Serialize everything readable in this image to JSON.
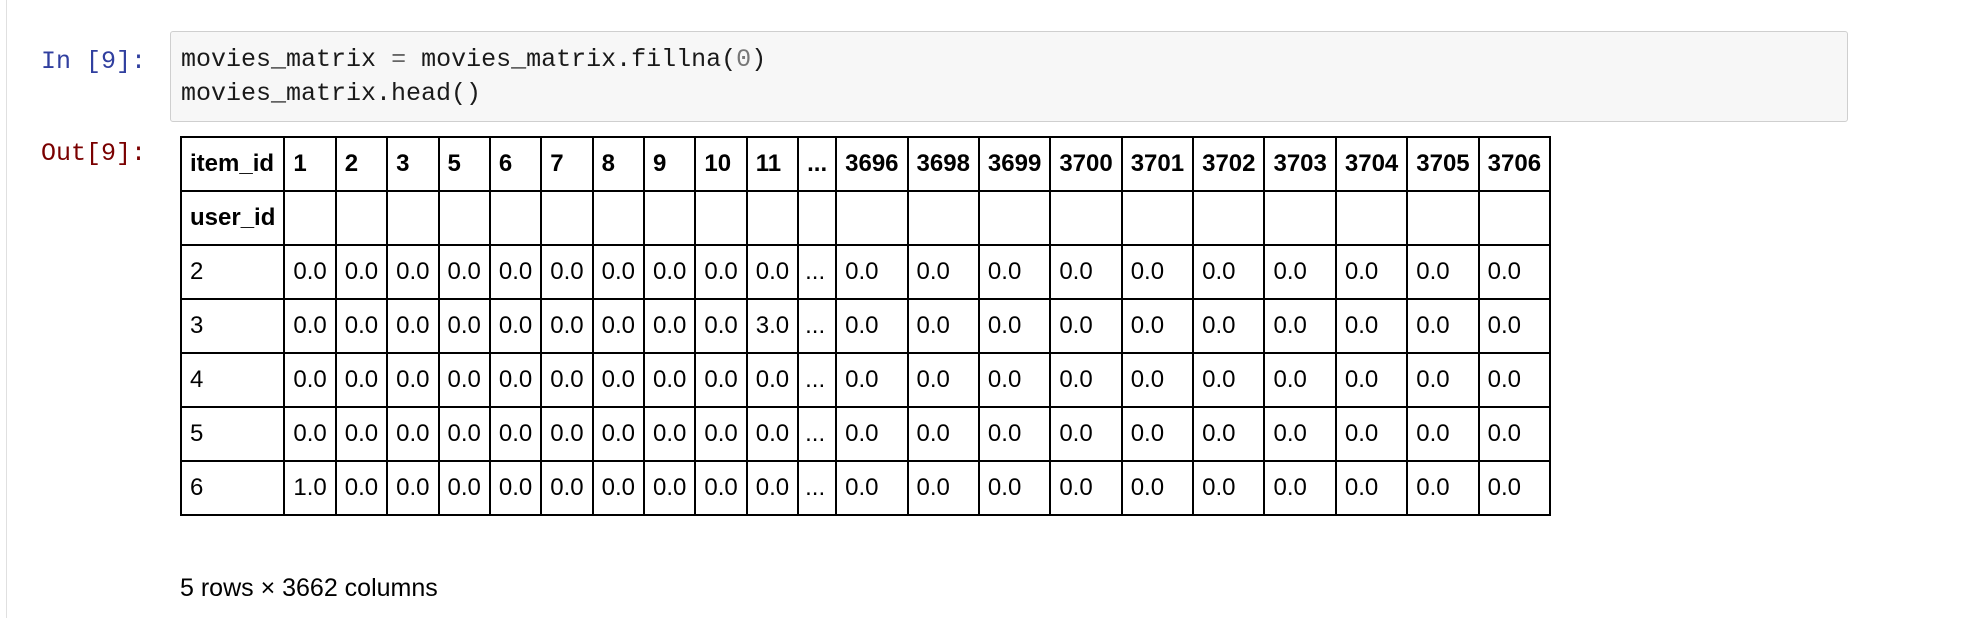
{
  "cell": {
    "in_prompt": "In [9]:",
    "out_prompt": "Out[9]:",
    "code": {
      "line1": {
        "lhs": "movies_matrix",
        "op": "=",
        "rhs_obj": "movies_matrix",
        "rhs_method": ".fillna(",
        "arg": "0",
        "close": ")"
      },
      "line2": "movies_matrix.head()"
    }
  },
  "dataframe": {
    "columns_name": "item_id",
    "index_name": "user_id",
    "columns": [
      "1",
      "2",
      "3",
      "5",
      "6",
      "7",
      "8",
      "9",
      "10",
      "11",
      "...",
      "3696",
      "3698",
      "3699",
      "3700",
      "3701",
      "3702",
      "3703",
      "3704",
      "3705",
      "3706"
    ],
    "rows": [
      {
        "index": "2",
        "values": [
          "0.0",
          "0.0",
          "0.0",
          "0.0",
          "0.0",
          "0.0",
          "0.0",
          "0.0",
          "0.0",
          "0.0",
          "...",
          "0.0",
          "0.0",
          "0.0",
          "0.0",
          "0.0",
          "0.0",
          "0.0",
          "0.0",
          "0.0",
          "0.0"
        ]
      },
      {
        "index": "3",
        "values": [
          "0.0",
          "0.0",
          "0.0",
          "0.0",
          "0.0",
          "0.0",
          "0.0",
          "0.0",
          "0.0",
          "3.0",
          "...",
          "0.0",
          "0.0",
          "0.0",
          "0.0",
          "0.0",
          "0.0",
          "0.0",
          "0.0",
          "0.0",
          "0.0"
        ]
      },
      {
        "index": "4",
        "values": [
          "0.0",
          "0.0",
          "0.0",
          "0.0",
          "0.0",
          "0.0",
          "0.0",
          "0.0",
          "0.0",
          "0.0",
          "...",
          "0.0",
          "0.0",
          "0.0",
          "0.0",
          "0.0",
          "0.0",
          "0.0",
          "0.0",
          "0.0",
          "0.0"
        ]
      },
      {
        "index": "5",
        "values": [
          "0.0",
          "0.0",
          "0.0",
          "0.0",
          "0.0",
          "0.0",
          "0.0",
          "0.0",
          "0.0",
          "0.0",
          "...",
          "0.0",
          "0.0",
          "0.0",
          "0.0",
          "0.0",
          "0.0",
          "0.0",
          "0.0",
          "0.0",
          "0.0"
        ]
      },
      {
        "index": "6",
        "values": [
          "1.0",
          "0.0",
          "0.0",
          "0.0",
          "0.0",
          "0.0",
          "0.0",
          "0.0",
          "0.0",
          "0.0",
          "...",
          "0.0",
          "0.0",
          "0.0",
          "0.0",
          "0.0",
          "0.0",
          "0.0",
          "0.0",
          "0.0",
          "0.0"
        ]
      }
    ],
    "shape_text": "5 rows × 3662 columns"
  },
  "colors": {
    "in_prompt": "#303f9f",
    "out_prompt": "#7a0000",
    "code_bg": "#f7f7f7"
  }
}
